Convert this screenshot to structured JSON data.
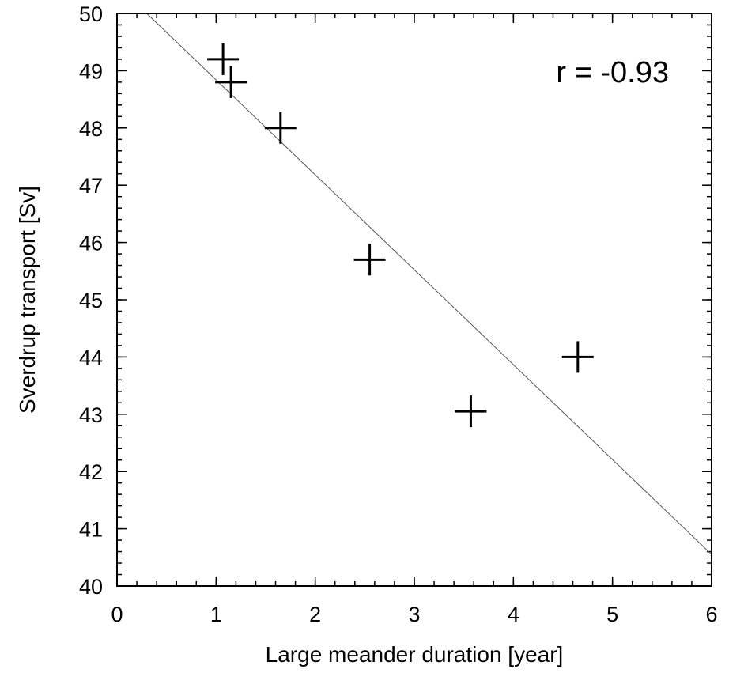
{
  "chart_data": {
    "type": "scatter",
    "title": "",
    "xlabel": "Large meander duration [year]",
    "ylabel": "Sverdrup transport [Sv]",
    "xlim": [
      0,
      6
    ],
    "ylim": [
      40,
      50
    ],
    "xticks": [
      0,
      1,
      2,
      3,
      4,
      5,
      6
    ],
    "yticks": [
      40,
      41,
      42,
      43,
      44,
      45,
      46,
      47,
      48,
      49,
      50
    ],
    "x_minor_step": 0.2,
    "y_minor_step": 0.2,
    "grid": false,
    "marker": "plus",
    "points": [
      {
        "x": 1.07,
        "y": 49.2
      },
      {
        "x": 1.15,
        "y": 48.8
      },
      {
        "x": 1.65,
        "y": 48.0
      },
      {
        "x": 2.55,
        "y": 45.7
      },
      {
        "x": 3.57,
        "y": 43.05
      },
      {
        "x": 4.65,
        "y": 44.0
      }
    ],
    "fit_line": {
      "x": [
        0.3,
        6.0
      ],
      "y": [
        50.0,
        40.55
      ]
    },
    "annotation": "r = -0.93",
    "colors": {
      "marker": "#000000",
      "line": "#555555",
      "axes": "#000000"
    }
  }
}
